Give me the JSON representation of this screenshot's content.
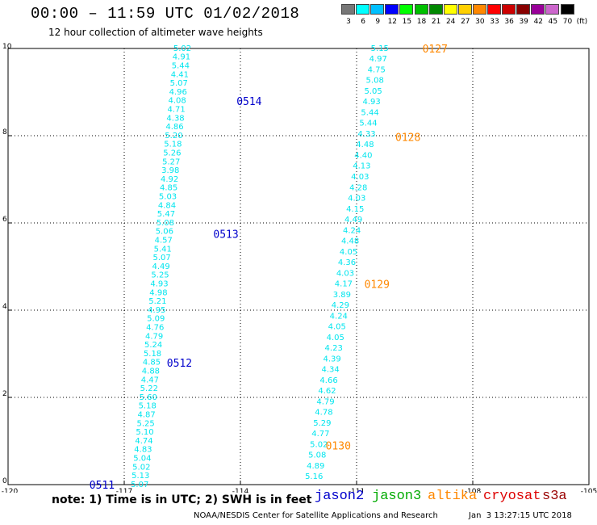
{
  "header": {
    "title": "00:00 – 11:59 UTC 01/02/2018",
    "subtitle": "12 hour collection of altimeter wave heights"
  },
  "colorbar": {
    "unit": "(ft)",
    "bins": [
      {
        "label": "3",
        "color": "#777777"
      },
      {
        "label": "6",
        "color": "#00ffff"
      },
      {
        "label": "9",
        "color": "#00c0ff"
      },
      {
        "label": "12",
        "color": "#0000ff"
      },
      {
        "label": "15",
        "color": "#00ff00"
      },
      {
        "label": "18",
        "color": "#00c000"
      },
      {
        "label": "21",
        "color": "#008800"
      },
      {
        "label": "24",
        "color": "#ffff00"
      },
      {
        "label": "27",
        "color": "#ffd000"
      },
      {
        "label": "30",
        "color": "#ff8800"
      },
      {
        "label": "33",
        "color": "#ff0000"
      },
      {
        "label": "36",
        "color": "#cc0000"
      },
      {
        "label": "39",
        "color": "#880000"
      },
      {
        "label": "42",
        "color": "#990099"
      },
      {
        "label": "45",
        "color": "#cc66cc"
      },
      {
        "label": "70",
        "color": "#000000"
      }
    ]
  },
  "legend": [
    {
      "label": "jason2",
      "color": "#0000cc"
    },
    {
      "label": "jason3",
      "color": "#00aa00"
    },
    {
      "label": "altika",
      "color": "#ff8800"
    },
    {
      "label": "cryosat",
      "color": "#dd0000"
    },
    {
      "label": "s3a",
      "color": "#990000"
    }
  ],
  "footer": {
    "note": "note: 1) Time is in UTC; 2) SWH is in feet",
    "credit": "NOAA/NESDIS Center for Satellite Applications and Research",
    "timestamp": "Jan  3 13:27:15 UTC 2018"
  },
  "chart_data": {
    "type": "scatter",
    "title": "00:00 – 11:59 UTC 01/02/2018",
    "subtitle": "12 hour collection of altimeter wave heights",
    "xlim": [
      -120,
      -105
    ],
    "ylim": [
      0,
      10
    ],
    "xticks": [
      "-120",
      "-117",
      "-114",
      "-111",
      "-108",
      "-105"
    ],
    "yticks": [
      "0",
      "2",
      "4",
      "6",
      "8",
      "10"
    ],
    "grid": true,
    "label_color": "#00e5ee",
    "passes": [
      {
        "satellite": "jason2",
        "color": "#0000cc",
        "start": [
          -115.5,
          10.02
        ],
        "end": [
          -116.6,
          0.02
        ],
        "values": [
          "5.02",
          "4.91",
          "5.44",
          "4.41",
          "5.07",
          "4.96",
          "4.08",
          "4.71",
          "4.38",
          "4.86",
          "5.20",
          "5.18",
          "5.26",
          "5.27",
          "3.98",
          "4.92",
          "4.85",
          "5.03",
          "4.84",
          "5.47",
          "5.08",
          "5.06",
          "4.57",
          "5.41",
          "5.07",
          "4.49",
          "5.25",
          "4.93",
          "4.98",
          "5.21",
          "4.95",
          "5.09",
          "4.76",
          "4.79",
          "5.24",
          "5.18",
          "4.85",
          "4.88",
          "4.47",
          "5.22",
          "5.60",
          "5.18",
          "4.87",
          "5.25",
          "5.10",
          "4.74",
          "4.83",
          "5.04",
          "5.02",
          "5.13",
          "5.07"
        ],
        "time_labels": [
          {
            "text": "0514",
            "x": -114.1,
            "y": 8.8
          },
          {
            "text": "0513",
            "x": -114.7,
            "y": 5.75
          },
          {
            "text": "0512",
            "x": -115.9,
            "y": 2.8
          },
          {
            "text": "0511",
            "x": -117.9,
            "y": 0.0
          }
        ]
      },
      {
        "satellite": "altika",
        "color": "#ff8800",
        "start": [
          -110.4,
          10.02
        ],
        "end": [
          -112.1,
          0.2
        ],
        "values": [
          "5.15",
          "4.97",
          "4.75",
          "5.08",
          "5.05",
          "4.93",
          "5.44",
          "5.44",
          "4.33",
          "4.48",
          "4.40",
          "4.13",
          "4.03",
          "4.28",
          "4.03",
          "4.15",
          "4.49",
          "4.24",
          "4.48",
          "4.05",
          "4.36",
          "4.03",
          "4.17",
          "3.89",
          "4.29",
          "4.24",
          "4.05",
          "4.05",
          "4.23",
          "4.39",
          "4.34",
          "4.66",
          "4.62",
          "4.79",
          "4.78",
          "5.29",
          "4.77",
          "5.02",
          "5.08",
          "4.89",
          "5.16"
        ],
        "time_labels": [
          {
            "text": "0127",
            "x": -109.3,
            "y": 10.0
          },
          {
            "text": "0128",
            "x": -110.0,
            "y": 7.97
          },
          {
            "text": "0129",
            "x": -110.8,
            "y": 4.6
          },
          {
            "text": "0130",
            "x": -111.8,
            "y": 0.9
          }
        ]
      }
    ]
  }
}
